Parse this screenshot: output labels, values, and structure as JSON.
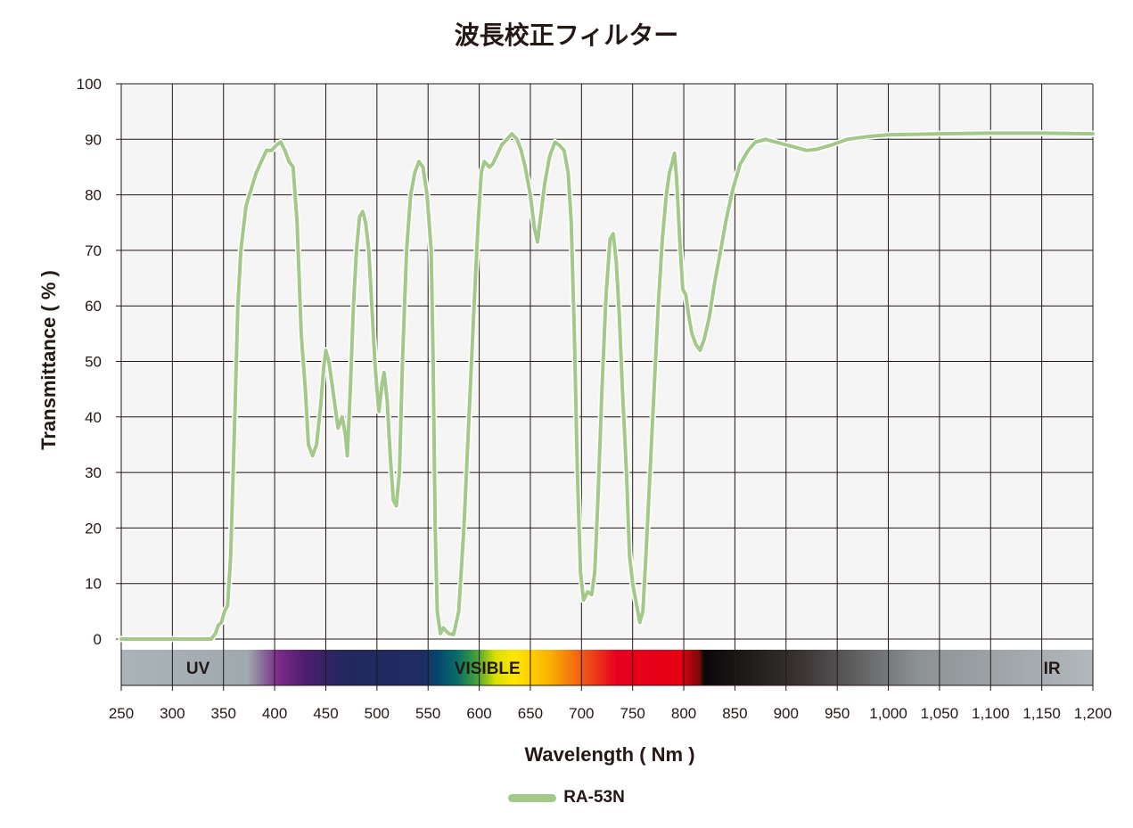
{
  "chart_data": {
    "type": "line",
    "title": "波長校正フィルター",
    "xlabel": "Wavelength ( Nm )",
    "ylabel": "Transmittance ( % )",
    "xlim": [
      250,
      1200
    ],
    "ylim": [
      0,
      100
    ],
    "x_ticks": [
      250,
      300,
      350,
      400,
      450,
      500,
      550,
      600,
      650,
      700,
      750,
      800,
      850,
      900,
      950,
      1000,
      1050,
      1100,
      1150,
      1200
    ],
    "x_tick_labels": [
      "250",
      "300",
      "350",
      "400",
      "450",
      "500",
      "550",
      "600",
      "650",
      "700",
      "750",
      "800",
      "850",
      "900",
      "950",
      "1,000",
      "1,050",
      "1,100",
      "1,150",
      "1,200"
    ],
    "y_ticks": [
      0,
      10,
      20,
      30,
      40,
      50,
      60,
      70,
      80,
      90,
      100
    ],
    "y_tick_labels": [
      "0",
      "10",
      "20",
      "30",
      "40",
      "50",
      "60",
      "70",
      "80",
      "90",
      "100"
    ],
    "grid": true,
    "legend_position": "bottom-center",
    "spectrum_bands": [
      {
        "label": "UV",
        "x": 325
      },
      {
        "label": "VISIBLE",
        "x": 608
      },
      {
        "label": "IR",
        "x": 1160
      }
    ],
    "series": [
      {
        "name": "RA-53N",
        "color": "#a3c98a",
        "points": [
          [
            250,
            0
          ],
          [
            300,
            0
          ],
          [
            338,
            0
          ],
          [
            342,
            1
          ],
          [
            345,
            2.5
          ],
          [
            348,
            3
          ],
          [
            351,
            5
          ],
          [
            354,
            6
          ],
          [
            357,
            15
          ],
          [
            361,
            40
          ],
          [
            364,
            60
          ],
          [
            367,
            70
          ],
          [
            372,
            78
          ],
          [
            377,
            81
          ],
          [
            382,
            84
          ],
          [
            387,
            86
          ],
          [
            392,
            88
          ],
          [
            397,
            88
          ],
          [
            402,
            89
          ],
          [
            406,
            89.5
          ],
          [
            410,
            88
          ],
          [
            414,
            86
          ],
          [
            418,
            85
          ],
          [
            422,
            75
          ],
          [
            426,
            55
          ],
          [
            430,
            45
          ],
          [
            433,
            35
          ],
          [
            437,
            33
          ],
          [
            441,
            35
          ],
          [
            445,
            42
          ],
          [
            448,
            49
          ],
          [
            450,
            52
          ],
          [
            453,
            50
          ],
          [
            456,
            46
          ],
          [
            459,
            42
          ],
          [
            462,
            38
          ],
          [
            464,
            39
          ],
          [
            466,
            40
          ],
          [
            469,
            37
          ],
          [
            471,
            33
          ],
          [
            474,
            45
          ],
          [
            477,
            60
          ],
          [
            480,
            70
          ],
          [
            483,
            76
          ],
          [
            486,
            77
          ],
          [
            489,
            75
          ],
          [
            492,
            70
          ],
          [
            495,
            60
          ],
          [
            498,
            50
          ],
          [
            500,
            45
          ],
          [
            502,
            41
          ],
          [
            505,
            46
          ],
          [
            507,
            48
          ],
          [
            510,
            43
          ],
          [
            513,
            33
          ],
          [
            516,
            25
          ],
          [
            519,
            24
          ],
          [
            522,
            30
          ],
          [
            525,
            50
          ],
          [
            529,
            70
          ],
          [
            533,
            80
          ],
          [
            537,
            84
          ],
          [
            541,
            86
          ],
          [
            545,
            85
          ],
          [
            549,
            80
          ],
          [
            553,
            70
          ],
          [
            555,
            50
          ],
          [
            557,
            20
          ],
          [
            559,
            5
          ],
          [
            562,
            1
          ],
          [
            565,
            2
          ],
          [
            570,
            1
          ],
          [
            575,
            0.8
          ],
          [
            580,
            5
          ],
          [
            585,
            20
          ],
          [
            590,
            40
          ],
          [
            595,
            60
          ],
          [
            599,
            75
          ],
          [
            602,
            84
          ],
          [
            605,
            86
          ],
          [
            610,
            85
          ],
          [
            613,
            85.5
          ],
          [
            617,
            87
          ],
          [
            622,
            89
          ],
          [
            627,
            90
          ],
          [
            632,
            91
          ],
          [
            637,
            90
          ],
          [
            641,
            88
          ],
          [
            645,
            85
          ],
          [
            650,
            80
          ],
          [
            654,
            74
          ],
          [
            657,
            71.5
          ],
          [
            660,
            76
          ],
          [
            664,
            82
          ],
          [
            669,
            87
          ],
          [
            674,
            89.5
          ],
          [
            678,
            89
          ],
          [
            683,
            88
          ],
          [
            687,
            84
          ],
          [
            690,
            75
          ],
          [
            693,
            55
          ],
          [
            696,
            30
          ],
          [
            699,
            12
          ],
          [
            702,
            7
          ],
          [
            706,
            8.5
          ],
          [
            710,
            8
          ],
          [
            713,
            12
          ],
          [
            716,
            25
          ],
          [
            720,
            45
          ],
          [
            724,
            62
          ],
          [
            728,
            72
          ],
          [
            731,
            73
          ],
          [
            734,
            68
          ],
          [
            737,
            58
          ],
          [
            740,
            45
          ],
          [
            744,
            30
          ],
          [
            747,
            15
          ],
          [
            750,
            10
          ],
          [
            754,
            6
          ],
          [
            757,
            3
          ],
          [
            760,
            5
          ],
          [
            763,
            15
          ],
          [
            767,
            30
          ],
          [
            771,
            45
          ],
          [
            775,
            60
          ],
          [
            779,
            72
          ],
          [
            783,
            80
          ],
          [
            786,
            84
          ],
          [
            789,
            86
          ],
          [
            791,
            87.5
          ],
          [
            793,
            83
          ],
          [
            796,
            72
          ],
          [
            799,
            63
          ],
          [
            802,
            62
          ],
          [
            805,
            58
          ],
          [
            808,
            55
          ],
          [
            812,
            53
          ],
          [
            816,
            52
          ],
          [
            820,
            54
          ],
          [
            825,
            58
          ],
          [
            830,
            64
          ],
          [
            836,
            70
          ],
          [
            842,
            76
          ],
          [
            848,
            81
          ],
          [
            855,
            85.5
          ],
          [
            863,
            88
          ],
          [
            870,
            89.5
          ],
          [
            880,
            90
          ],
          [
            890,
            89.5
          ],
          [
            900,
            89
          ],
          [
            910,
            88.5
          ],
          [
            920,
            88
          ],
          [
            930,
            88.2
          ],
          [
            945,
            89
          ],
          [
            960,
            90
          ],
          [
            980,
            90.5
          ],
          [
            1000,
            90.8
          ],
          [
            1050,
            91
          ],
          [
            1100,
            91.1
          ],
          [
            1150,
            91.1
          ],
          [
            1200,
            91
          ]
        ]
      }
    ]
  }
}
